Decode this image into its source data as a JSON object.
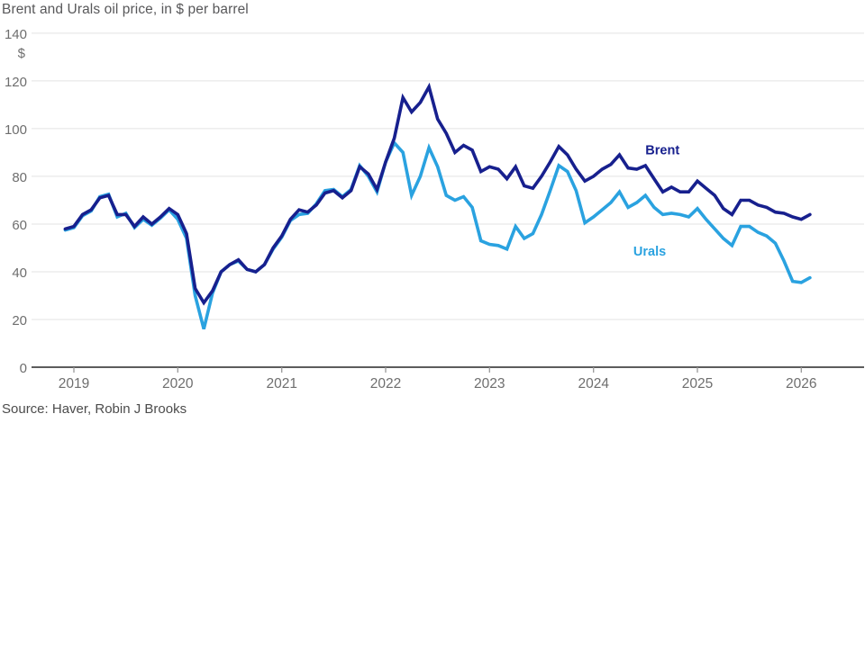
{
  "source": {
    "text": "Source: Haver, Robin J Brooks"
  },
  "colors": {
    "brent": "#17208e",
    "urals": "#2aa2e0",
    "grid": "#e3e3e3",
    "axis": "#454545",
    "tick": "#999999",
    "tick_label": "#6e6e6e",
    "title_text": "#58585a",
    "source_text": "#4c4c4c"
  },
  "chart_data": {
    "type": "line",
    "title": "Brent and Urals oil price, in $ per barrel",
    "x_unit": "month",
    "x_start": "2018-12",
    "x_end": "2026-02",
    "x_tick_labels": [
      "2019",
      "2020",
      "2021",
      "2022",
      "2023",
      "2024",
      "2025",
      "2026"
    ],
    "x_tick_month_indices": [
      1,
      13,
      25,
      37,
      49,
      61,
      73,
      85
    ],
    "y_ticks": [
      0,
      20,
      40,
      60,
      80,
      100,
      120,
      140
    ],
    "ylim": [
      0,
      140
    ],
    "y_unit_label": "$",
    "grid": true,
    "legend_position": "inline-labels",
    "series": [
      {
        "name": "Brent",
        "color": "#17208e",
        "values": [
          58,
          59,
          64,
          66,
          71,
          72,
          64,
          64,
          59,
          63,
          60,
          63,
          66.5,
          64,
          56,
          33,
          27,
          32,
          40,
          43,
          45,
          41,
          40,
          43,
          50,
          55,
          62,
          66,
          65,
          68,
          73,
          74,
          71,
          74,
          84,
          81,
          74.5,
          86,
          96,
          113,
          107,
          111,
          117.5,
          104,
          98,
          90,
          93,
          91,
          82,
          84,
          83,
          79,
          84,
          76,
          75,
          80,
          86,
          92.5,
          89,
          83,
          78,
          80,
          83,
          85,
          89,
          83.5,
          83,
          84.5,
          79,
          73.5,
          75.5,
          73.5,
          73.5,
          78,
          75,
          72,
          66.5,
          64,
          70,
          70,
          68,
          67,
          65,
          64.5,
          63,
          62,
          64
        ]
      },
      {
        "name": "Urals",
        "color": "#2aa2e0",
        "values": [
          57.5,
          58.5,
          63.5,
          65.5,
          71.5,
          72.5,
          63,
          64.5,
          58.5,
          62,
          59.5,
          62.5,
          66,
          62,
          54,
          30,
          16,
          31,
          40,
          43,
          44.5,
          41,
          40,
          43,
          49.5,
          54.5,
          61.5,
          64,
          64.5,
          68.5,
          74,
          74.5,
          71.5,
          74.5,
          84.5,
          80,
          73.5,
          86,
          94,
          90,
          72,
          80,
          92,
          84,
          72,
          70,
          71.5,
          67,
          53,
          51.5,
          51,
          49.5,
          59,
          54,
          56,
          64,
          74,
          84.5,
          82,
          74,
          60.5,
          63,
          66,
          69,
          73.5,
          67,
          69,
          72,
          67,
          64,
          64.5,
          64,
          63,
          66.5,
          62,
          58,
          54,
          51,
          59,
          59,
          56.5,
          55,
          52,
          44.5,
          36,
          35.5,
          37.5
        ]
      }
    ],
    "annotations": [
      {
        "series": "Brent",
        "text": "Brent",
        "month_index": 67,
        "value": 89.2
      },
      {
        "series": "Urals",
        "text": "Urals",
        "month_index": 65.6,
        "value": 46.8
      }
    ]
  }
}
